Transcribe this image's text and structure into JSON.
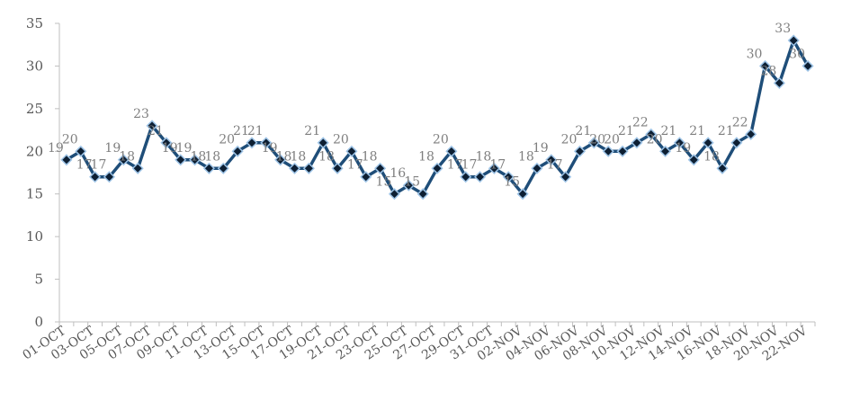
{
  "chart_data": {
    "type": "line",
    "title": "",
    "xlabel": "",
    "ylabel": "",
    "ylim": [
      0,
      35
    ],
    "yticks": [
      0,
      5,
      10,
      15,
      20,
      25,
      30,
      35
    ],
    "grid": false,
    "legend": "none",
    "categories": [
      "01-OCT",
      "02-OCT",
      "03-OCT",
      "04-OCT",
      "05-OCT",
      "06-OCT",
      "07-OCT",
      "08-OCT",
      "09-OCT",
      "10-OCT",
      "11-OCT",
      "12-OCT",
      "13-OCT",
      "14-OCT",
      "15-OCT",
      "16-OCT",
      "17-OCT",
      "18-OCT",
      "19-OCT",
      "20-OCT",
      "21-OCT",
      "22-OCT",
      "23-OCT",
      "24-OCT",
      "25-OCT",
      "26-OCT",
      "27-OCT",
      "28-OCT",
      "29-OCT",
      "30-OCT",
      "31-OCT",
      "01-NOV",
      "02-NOV",
      "03-NOV",
      "04-NOV",
      "05-NOV",
      "06-NOV",
      "07-NOV",
      "08-NOV",
      "09-NOV",
      "10-NOV",
      "11-NOV",
      "12-NOV",
      "13-NOV",
      "14-NOV",
      "15-NOV",
      "16-NOV",
      "17-NOV",
      "18-NOV",
      "19-NOV",
      "20-NOV",
      "21-NOV",
      "22-NOV"
    ],
    "x_tick_labels": [
      "01-OCT",
      "03-OCT",
      "05-OCT",
      "07-OCT",
      "09-OCT",
      "11-OCT",
      "13-OCT",
      "15-OCT",
      "17-OCT",
      "19-OCT",
      "21-OCT",
      "23-OCT",
      "25-OCT",
      "27-OCT",
      "29-OCT",
      "31-OCT",
      "02-NOV",
      "04-NOV",
      "06-NOV",
      "08-NOV",
      "10-NOV",
      "12-NOV",
      "14-NOV",
      "16-NOV",
      "18-NOV",
      "20-NOV",
      "22-NOV"
    ],
    "series": [
      {
        "values": [
          19,
          20,
          17,
          17,
          19,
          18,
          23,
          21,
          19,
          19,
          18,
          18,
          20,
          21,
          21,
          19,
          18,
          18,
          21,
          18,
          20,
          17,
          18,
          15,
          16,
          15,
          18,
          20,
          17,
          17,
          18,
          17,
          15,
          18,
          19,
          17,
          20,
          21,
          20,
          20,
          21,
          22,
          20,
          21,
          19,
          21,
          18,
          21,
          22,
          30,
          28,
          33,
          30
        ],
        "color": "#1f4e79",
        "marker_color": "#0d1f33",
        "marker_edge": "#9dc3e6"
      }
    ],
    "data_label_color": "#7f7f7f",
    "axis_color": "#bfbfbf"
  }
}
